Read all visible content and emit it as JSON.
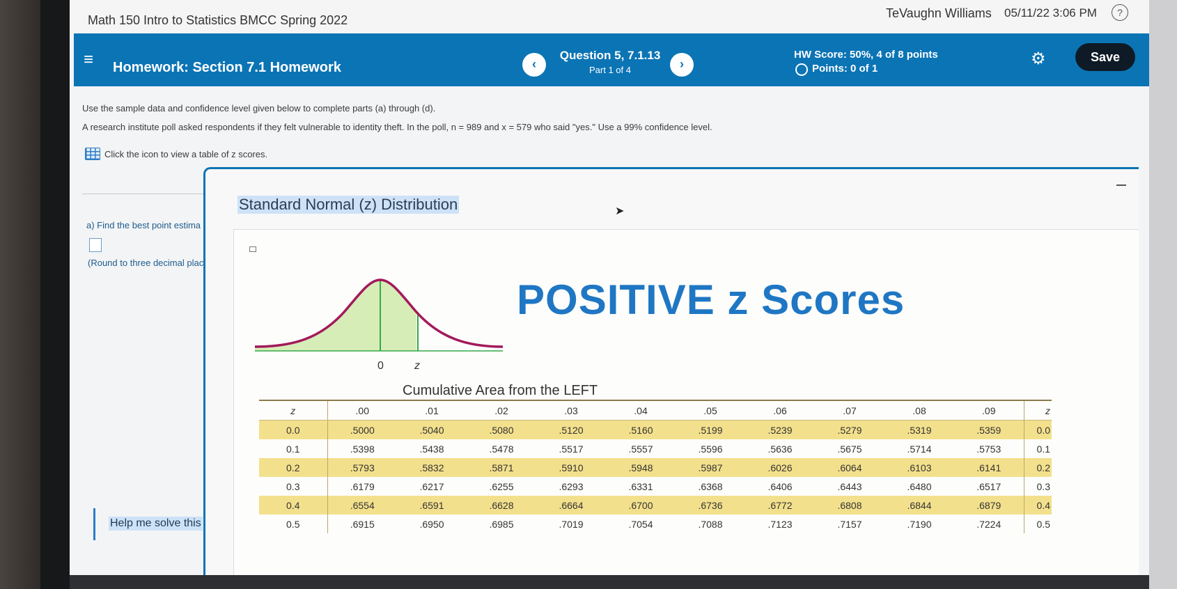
{
  "topbar": {
    "course_title": "Math 150 Intro to Statistics BMCC Spring 2022",
    "user_name": "TeVaughn Williams",
    "datetime": "05/11/22 3:06 PM",
    "help_icon": "?"
  },
  "hwbar": {
    "menu_icon": "≡",
    "title": "Homework: Section 7.1 Homework",
    "prev_icon": "‹",
    "next_icon": "›",
    "question": "Question 5, 7.1.13",
    "part": "Part 1 of 4",
    "hw_score": "HW Score: 50%, 4 of 8 points",
    "points": "Points: 0 of 1",
    "settings_icon": "⚙",
    "save_label": "Save"
  },
  "question": {
    "instructions": "Use the sample data and confidence level given below to complete parts (a) through (d).",
    "problem": "A research institute poll asked respondents if they felt vulnerable to identity theft. In the poll, n = 989 and x = 579 who said \"yes.\" Use a 99% confidence level.",
    "z_table_link": "Click the icon to view a table of z scores.",
    "part_a_label": "a) Find the best point estima",
    "round_note": "(Round to three decimal plac",
    "help_solve": "Help me solve this"
  },
  "popup": {
    "title": "Standard Normal (z) Distribution",
    "heading": "POSITIVE z Scores",
    "curve_zero_label": "0",
    "curve_z_label": "z",
    "table_caption": "Cumulative Area from the LEFT",
    "colors": {
      "curve": "#a3195b",
      "area": "#d6edb8",
      "line": "#35a84b",
      "row_shade": "#f3e08c",
      "heading": "#1f77c4"
    },
    "table": {
      "headers": [
        "z",
        ".00",
        ".01",
        ".02",
        ".03",
        ".04",
        ".05",
        ".06",
        ".07",
        ".08",
        ".09",
        "z"
      ],
      "rows": [
        [
          "0.0",
          ".5000",
          ".5040",
          ".5080",
          ".5120",
          ".5160",
          ".5199",
          ".5239",
          ".5279",
          ".5319",
          ".5359",
          "0.0"
        ],
        [
          "0.1",
          ".5398",
          ".5438",
          ".5478",
          ".5517",
          ".5557",
          ".5596",
          ".5636",
          ".5675",
          ".5714",
          ".5753",
          "0.1"
        ],
        [
          "0.2",
          ".5793",
          ".5832",
          ".5871",
          ".5910",
          ".5948",
          ".5987",
          ".6026",
          ".6064",
          ".6103",
          ".6141",
          "0.2"
        ],
        [
          "0.3",
          ".6179",
          ".6217",
          ".6255",
          ".6293",
          ".6331",
          ".6368",
          ".6406",
          ".6443",
          ".6480",
          ".6517",
          "0.3"
        ],
        [
          "0.4",
          ".6554",
          ".6591",
          ".6628",
          ".6664",
          ".6700",
          ".6736",
          ".6772",
          ".6808",
          ".6844",
          ".6879",
          "0.4"
        ],
        [
          "0.5",
          ".6915",
          ".6950",
          ".6985",
          ".7019",
          ".7054",
          ".7088",
          ".7123",
          ".7157",
          ".7190",
          ".7224",
          "0.5"
        ]
      ]
    }
  }
}
